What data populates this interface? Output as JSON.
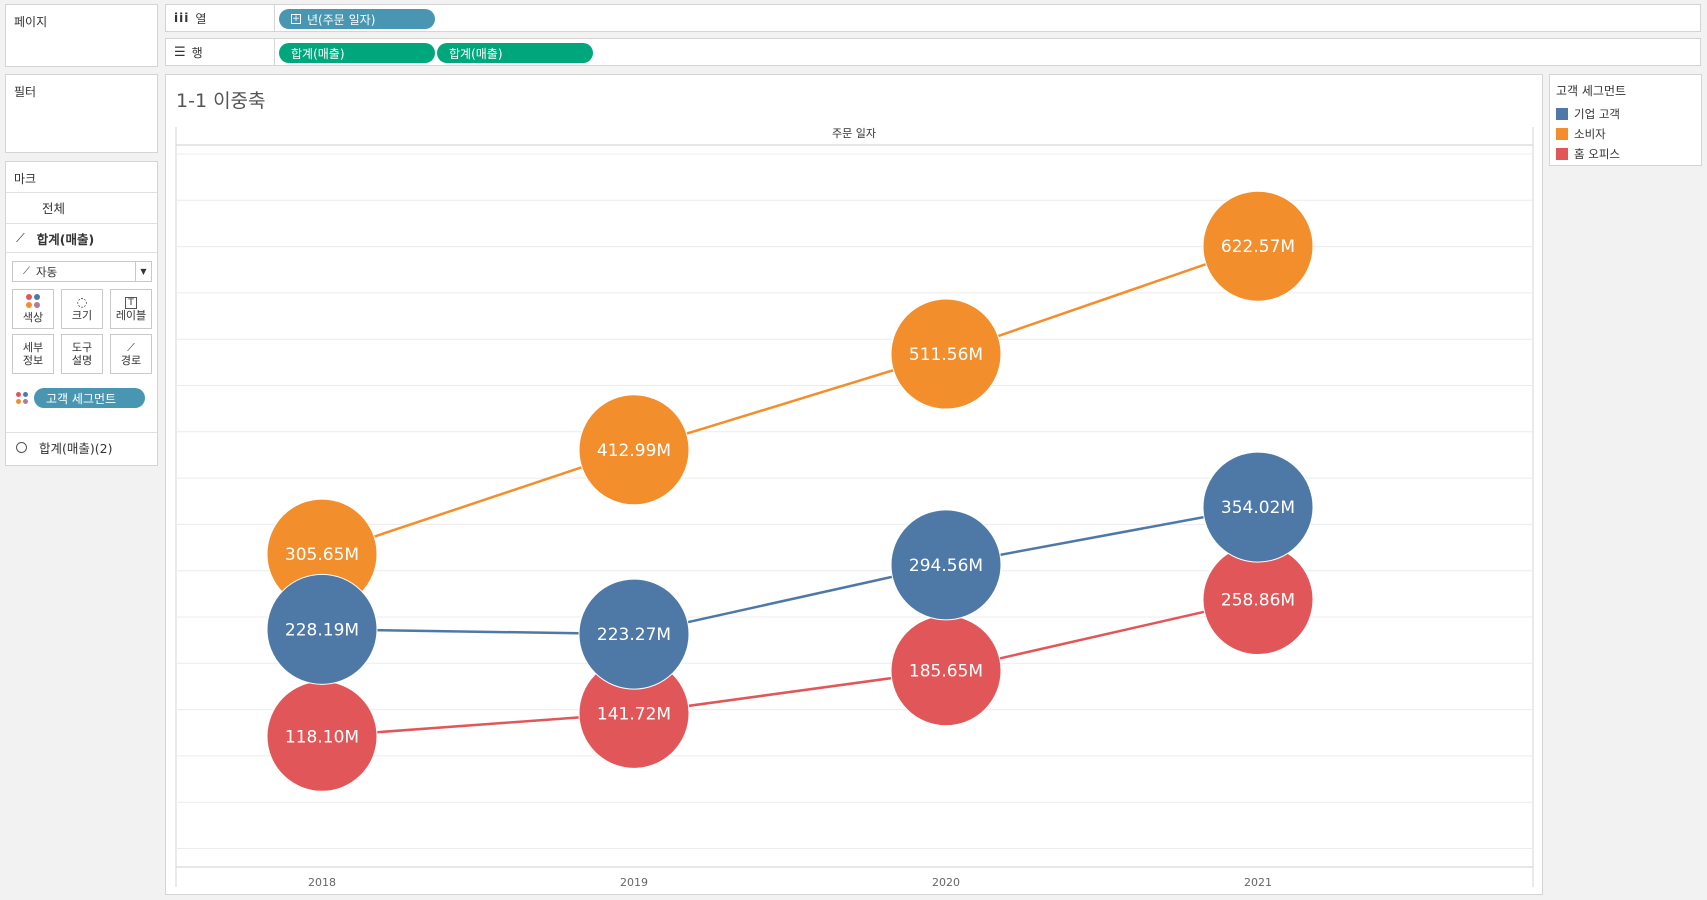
{
  "shelves": {
    "pages_label": "페이지",
    "filters_label": "필터",
    "columns_label": "열",
    "columns_pill": "년(주문 일자)",
    "rows_label": "행",
    "rows_pills": [
      "합계(매출)",
      "합계(매출)"
    ]
  },
  "marks": {
    "title": "마크",
    "all_label": "전체",
    "measure1_label": "합계(매출)",
    "dropdown_value": "자동",
    "buttons": {
      "color": "색상",
      "size": "크기",
      "label": "레이블",
      "detail_l1": "세부",
      "detail_l2": "정보",
      "tooltip_l1": "도구",
      "tooltip_l2": "설명",
      "path": "경로"
    },
    "color_field_pill": "고객 세그먼트",
    "measure2_label": "합계(매출)(2)"
  },
  "legend": {
    "title": "고객 세그먼트",
    "items": [
      {
        "label": "기업 고객",
        "color": "#4e79a7"
      },
      {
        "label": "소비자",
        "color": "#f28e2b"
      },
      {
        "label": "홈 오피스",
        "color": "#e15759"
      }
    ]
  },
  "chart_data": {
    "type": "line",
    "title": "1-1 이중축",
    "column_header": "주문 일자",
    "categories": [
      "2018",
      "2019",
      "2020",
      "2021"
    ],
    "ylim": [
      0,
      700
    ],
    "grid": true,
    "series": [
      {
        "name": "기업 고객",
        "color": "#4e79a7",
        "values": [
          228.19,
          223.27,
          294.56,
          354.02
        ],
        "labels": [
          "228.19M",
          "223.27M",
          "294.56M",
          "354.02M"
        ]
      },
      {
        "name": "소비자",
        "color": "#f28e2b",
        "values": [
          305.65,
          412.99,
          511.56,
          622.57
        ],
        "labels": [
          "305.65M",
          "412.99M",
          "511.56M",
          "622.57M"
        ]
      },
      {
        "name": "홈 오피스",
        "color": "#e15759",
        "values": [
          118.1,
          141.72,
          185.65,
          258.86
        ],
        "labels": [
          "118.10M",
          "141.72M",
          "185.65M",
          "258.86M"
        ]
      }
    ]
  }
}
